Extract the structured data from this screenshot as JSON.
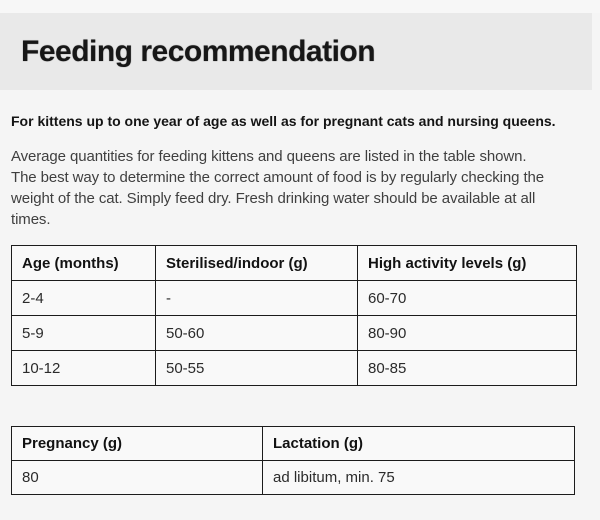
{
  "page": {
    "background": "#f5f5f5",
    "banner_background": "#e9e9e9",
    "table_cell_background": "#f9f9f9",
    "table_border_color": "#1c1c1c"
  },
  "header": {
    "title": "Feeding recommendation"
  },
  "intro": {
    "lead": "For kittens up to one year of age as well as for pregnant cats and nursing queens.",
    "body_lines": [
      "Average quantities for feeding kittens and queens are listed in the table shown.",
      "The best way to determine the correct amount of food is by regularly checking the",
      "weight of the cat. Simply feed dry. Fresh drinking water should be available at all",
      "times."
    ]
  },
  "tables": [
    {
      "name": "kitten-feeding-table",
      "headers": [
        "Age (months)",
        "Sterilised/indoor (g)",
        "High activity levels (g)"
      ],
      "rows": [
        [
          "2-4",
          "-",
          "60-70"
        ],
        [
          "5-9",
          "50-60",
          "80-90"
        ],
        [
          "10-12",
          "50-55",
          "80-85"
        ]
      ]
    },
    {
      "name": "queen-feeding-table",
      "headers": [
        "Pregnancy (g)",
        "Lactation (g)"
      ],
      "rows": [
        [
          "80",
          "ad libitum, min. 75"
        ]
      ]
    }
  ]
}
